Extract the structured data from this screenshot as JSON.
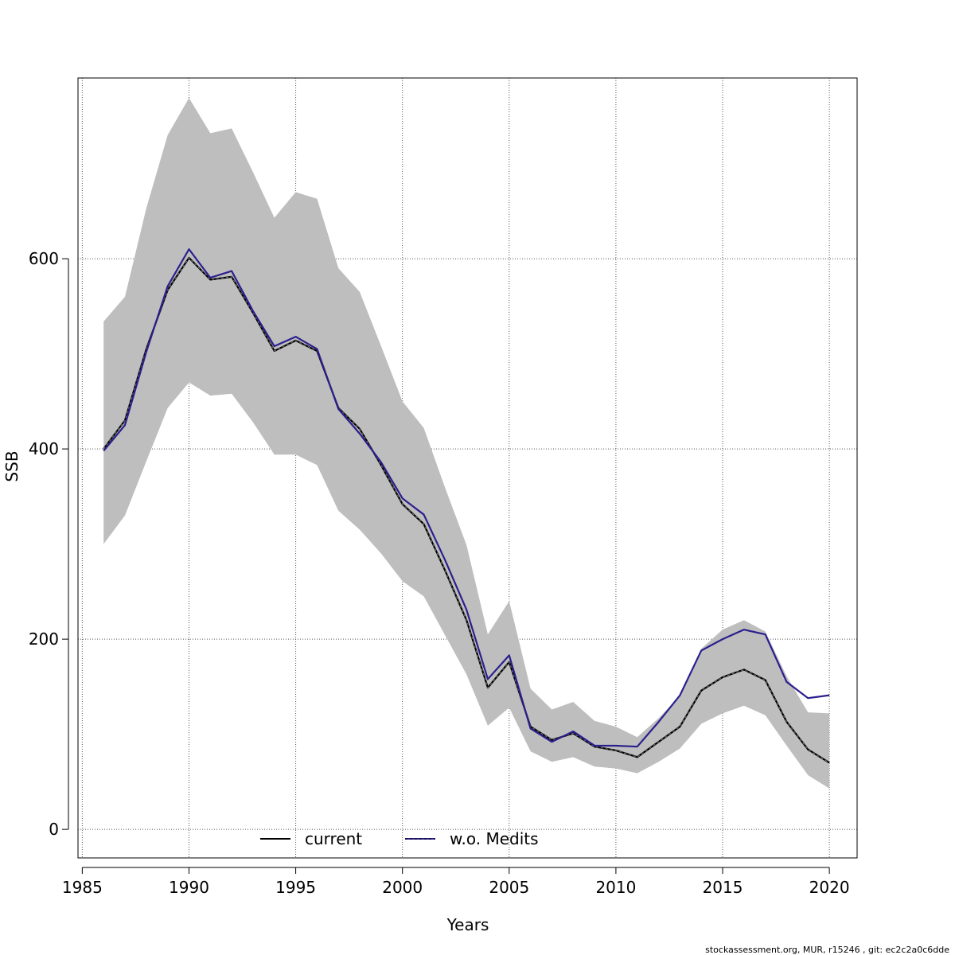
{
  "chart_data": {
    "type": "line",
    "title": "",
    "xlabel": "Years",
    "ylabel": "SSB",
    "xlim": [
      1984.8,
      2021.3
    ],
    "ylim": [
      -30,
      790
    ],
    "x_ticks": [
      1985,
      1990,
      1995,
      2000,
      2005,
      2010,
      2015,
      2020
    ],
    "y_ticks": [
      0,
      200,
      400,
      600
    ],
    "grid": true,
    "legend_position": "bottom",
    "x": [
      1986,
      1987,
      1988,
      1989,
      1990,
      1991,
      1992,
      1993,
      1994,
      1995,
      1996,
      1997,
      1998,
      1999,
      2000,
      2001,
      2002,
      2003,
      2004,
      2005,
      2006,
      2007,
      2008,
      2009,
      2010,
      2011,
      2012,
      2013,
      2014,
      2015,
      2016,
      2017,
      2018,
      2019,
      2020
    ],
    "series": [
      {
        "name": "current",
        "color": "#000000",
        "values": [
          400,
          430,
          505,
          567,
          601,
          578,
          581,
          543,
          503,
          514,
          503,
          443,
          421,
          383,
          342,
          321,
          272,
          220,
          149,
          176,
          108,
          94,
          101,
          87,
          83,
          76,
          92,
          108,
          146,
          160,
          168,
          157,
          113,
          84,
          70
        ]
      },
      {
        "name": "w.o. Medits",
        "color": "#2b1f8e",
        "values": [
          398,
          425,
          502,
          571,
          610,
          580,
          587,
          545,
          508,
          518,
          505,
          442,
          416,
          386,
          348,
          331,
          283,
          231,
          158,
          183,
          106,
          92,
          103,
          88,
          88,
          87,
          113,
          141,
          188,
          200,
          210,
          205,
          155,
          138,
          141
        ]
      }
    ],
    "band": {
      "color": "#bebebe",
      "upper": [
        534,
        560,
        653,
        730,
        769,
        732,
        737,
        691,
        643,
        670,
        663,
        590,
        565,
        508,
        450,
        422,
        359,
        299,
        205,
        240,
        148,
        126,
        134,
        114,
        108,
        97,
        117,
        140,
        190,
        210,
        220,
        208,
        161,
        123,
        122
      ],
      "lower": [
        300,
        330,
        387,
        443,
        470,
        456,
        458,
        428,
        394,
        394,
        383,
        335,
        315,
        290,
        261,
        245,
        204,
        163,
        109,
        128,
        82,
        71,
        76,
        66,
        64,
        59,
        71,
        85,
        111,
        122,
        130,
        120,
        88,
        57,
        43
      ]
    }
  },
  "footer": "stockassessment.org, MUR, r15246 , git: ec2c2a0c6dde"
}
